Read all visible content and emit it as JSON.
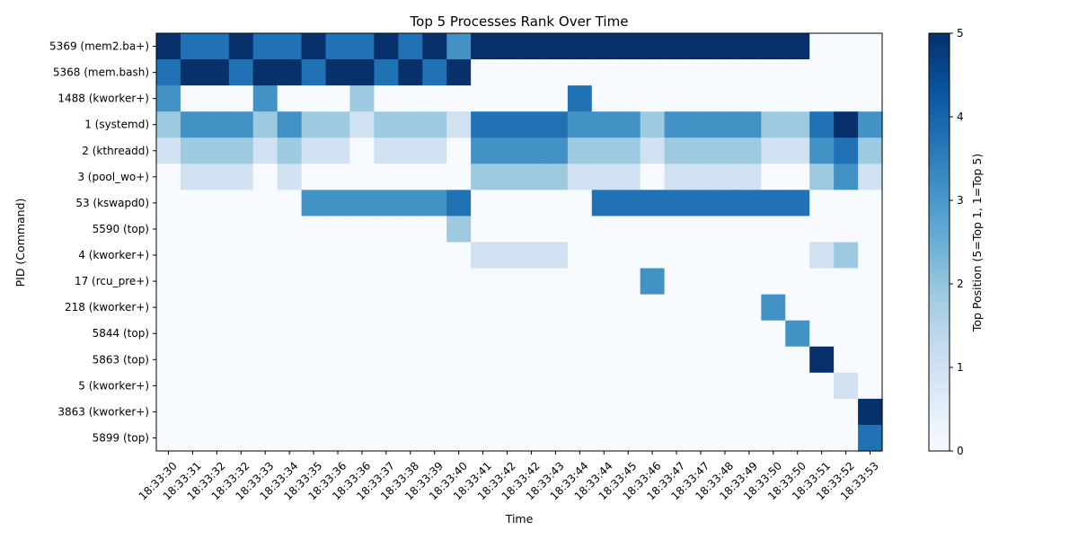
{
  "chart_data": {
    "type": "heatmap",
    "title": "Top 5 Processes Rank Over Time",
    "xlabel": "Time",
    "ylabel": "PID (Command)",
    "colorbar_label": "Top Position (5=Top 1, 1=Top 5)",
    "colormap": "Blues",
    "vmin": 0,
    "vmax": 5,
    "colorbar_ticks": [
      0,
      1,
      2,
      3,
      4,
      5
    ],
    "x_tick_labels": [
      "18:33:30",
      "18:33:31",
      "18:33:32",
      "18:33:32",
      "18:33:33",
      "18:33:34",
      "18:33:35",
      "18:33:36",
      "18:33:36",
      "18:33:37",
      "18:33:38",
      "18:33:39",
      "18:33:40",
      "18:33:41",
      "18:33:42",
      "18:33:42",
      "18:33:43",
      "18:33:44",
      "18:33:44",
      "18:33:45",
      "18:33:46",
      "18:33:47",
      "18:33:47",
      "18:33:48",
      "18:33:49",
      "18:33:50",
      "18:33:50",
      "18:33:51",
      "18:33:52",
      "18:33:53"
    ],
    "rows": [
      {
        "label": "5369 (mem2.ba+)",
        "values": [
          5,
          4,
          4,
          5,
          4,
          4,
          5,
          4,
          4,
          5,
          4,
          5,
          3,
          5,
          5,
          5,
          5,
          5,
          5,
          5,
          5,
          5,
          5,
          5,
          5,
          5,
          5,
          0,
          0,
          0
        ]
      },
      {
        "label": "5368 (mem.bash)",
        "values": [
          4,
          5,
          5,
          4,
          5,
          5,
          4,
          5,
          5,
          4,
          5,
          4,
          5,
          0,
          0,
          0,
          0,
          0,
          0,
          0,
          0,
          0,
          0,
          0,
          0,
          0,
          0,
          0,
          0,
          0
        ]
      },
      {
        "label": "1488 (kworker+)",
        "values": [
          3,
          0,
          0,
          0,
          3,
          0,
          0,
          0,
          2,
          0,
          0,
          0,
          0,
          0,
          0,
          0,
          0,
          4,
          0,
          0,
          0,
          0,
          0,
          0,
          0,
          0,
          0,
          0,
          0,
          0
        ]
      },
      {
        "label": "1 (systemd)",
        "values": [
          2,
          3,
          3,
          3,
          2,
          3,
          2,
          2,
          1,
          2,
          2,
          2,
          1,
          4,
          4,
          4,
          4,
          3,
          3,
          3,
          2,
          3,
          3,
          3,
          3,
          2,
          2,
          4,
          5,
          3
        ]
      },
      {
        "label": "2 (kthreadd)",
        "values": [
          1,
          2,
          2,
          2,
          1,
          2,
          1,
          1,
          0,
          1,
          1,
          1,
          0,
          3,
          3,
          3,
          3,
          2,
          2,
          2,
          1,
          2,
          2,
          2,
          2,
          1,
          1,
          3,
          4,
          2
        ]
      },
      {
        "label": "3 (pool_wo+)",
        "values": [
          0,
          1,
          1,
          1,
          0,
          1,
          0,
          0,
          0,
          0,
          0,
          0,
          0,
          2,
          2,
          2,
          2,
          1,
          1,
          1,
          0,
          1,
          1,
          1,
          1,
          0,
          0,
          2,
          3,
          1
        ]
      },
      {
        "label": "53 (kswapd0)",
        "values": [
          0,
          0,
          0,
          0,
          0,
          0,
          3,
          3,
          3,
          3,
          3,
          3,
          4,
          0,
          0,
          0,
          0,
          0,
          4,
          4,
          4,
          4,
          4,
          4,
          4,
          4,
          4,
          0,
          0,
          0
        ]
      },
      {
        "label": "5590 (top)",
        "values": [
          0,
          0,
          0,
          0,
          0,
          0,
          0,
          0,
          0,
          0,
          0,
          0,
          2,
          0,
          0,
          0,
          0,
          0,
          0,
          0,
          0,
          0,
          0,
          0,
          0,
          0,
          0,
          0,
          0,
          0
        ]
      },
      {
        "label": "4 (kworker+)",
        "values": [
          0,
          0,
          0,
          0,
          0,
          0,
          0,
          0,
          0,
          0,
          0,
          0,
          0,
          1,
          1,
          1,
          1,
          0,
          0,
          0,
          0,
          0,
          0,
          0,
          0,
          0,
          0,
          1,
          2,
          0
        ]
      },
      {
        "label": "17 (rcu_pre+)",
        "values": [
          0,
          0,
          0,
          0,
          0,
          0,
          0,
          0,
          0,
          0,
          0,
          0,
          0,
          0,
          0,
          0,
          0,
          0,
          0,
          0,
          3,
          0,
          0,
          0,
          0,
          0,
          0,
          0,
          0,
          0
        ]
      },
      {
        "label": "218 (kworker+)",
        "values": [
          0,
          0,
          0,
          0,
          0,
          0,
          0,
          0,
          0,
          0,
          0,
          0,
          0,
          0,
          0,
          0,
          0,
          0,
          0,
          0,
          0,
          0,
          0,
          0,
          0,
          3,
          0,
          0,
          0,
          0
        ]
      },
      {
        "label": "5844 (top)",
        "values": [
          0,
          0,
          0,
          0,
          0,
          0,
          0,
          0,
          0,
          0,
          0,
          0,
          0,
          0,
          0,
          0,
          0,
          0,
          0,
          0,
          0,
          0,
          0,
          0,
          0,
          0,
          3,
          0,
          0,
          0
        ]
      },
      {
        "label": "5863 (top)",
        "values": [
          0,
          0,
          0,
          0,
          0,
          0,
          0,
          0,
          0,
          0,
          0,
          0,
          0,
          0,
          0,
          0,
          0,
          0,
          0,
          0,
          0,
          0,
          0,
          0,
          0,
          0,
          0,
          5,
          0,
          0
        ]
      },
      {
        "label": "5 (kworker+)",
        "values": [
          0,
          0,
          0,
          0,
          0,
          0,
          0,
          0,
          0,
          0,
          0,
          0,
          0,
          0,
          0,
          0,
          0,
          0,
          0,
          0,
          0,
          0,
          0,
          0,
          0,
          0,
          0,
          0,
          1,
          0
        ]
      },
      {
        "label": "3863 (kworker+)",
        "values": [
          0,
          0,
          0,
          0,
          0,
          0,
          0,
          0,
          0,
          0,
          0,
          0,
          0,
          0,
          0,
          0,
          0,
          0,
          0,
          0,
          0,
          0,
          0,
          0,
          0,
          0,
          0,
          0,
          0,
          5
        ]
      },
      {
        "label": "5899 (top)",
        "values": [
          0,
          0,
          0,
          0,
          0,
          0,
          0,
          0,
          0,
          0,
          0,
          0,
          0,
          0,
          0,
          0,
          0,
          0,
          0,
          0,
          0,
          0,
          0,
          0,
          0,
          0,
          0,
          0,
          0,
          4
        ]
      }
    ]
  },
  "colors": {
    "level_0": "#f7fbff",
    "level_1": "#d0e1f2",
    "level_2": "#9ecae1",
    "level_3": "#4292c6",
    "level_4": "#2171b5",
    "level_5": "#08306b"
  }
}
